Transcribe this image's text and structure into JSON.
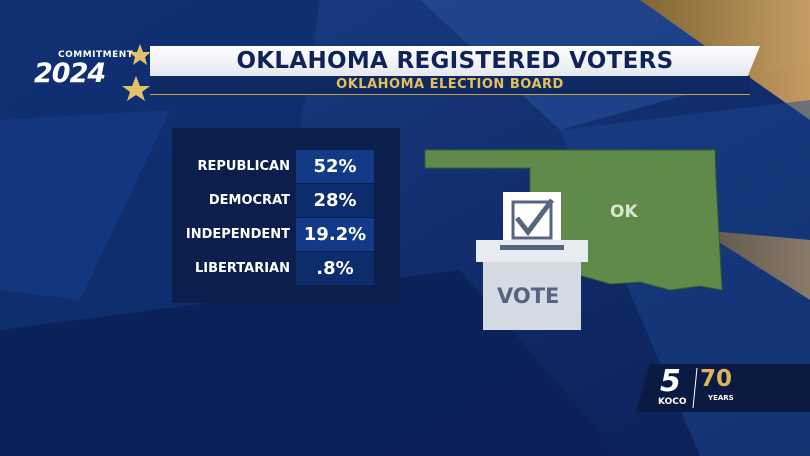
{
  "header": {
    "title": "OKLAHOMA REGISTERED VOTERS",
    "subtitle": "OKLAHOMA ELECTION BOARD"
  },
  "brand": {
    "label": "COMMITMENT",
    "year": "2024"
  },
  "table": {
    "rows": [
      [
        "REPUBLICAN",
        "52%"
      ],
      [
        "DEMOCRAT",
        "28%"
      ],
      [
        "INDEPENDENT",
        "19.2%"
      ],
      [
        "LIBERTARIAN",
        ".8%"
      ]
    ]
  },
  "map": {
    "label": "OK"
  },
  "ballot": {
    "label": "VOTE"
  },
  "station": {
    "number": "5",
    "name": "KOCO",
    "anniversary": "70",
    "anniversary_label": "YEARS"
  }
}
